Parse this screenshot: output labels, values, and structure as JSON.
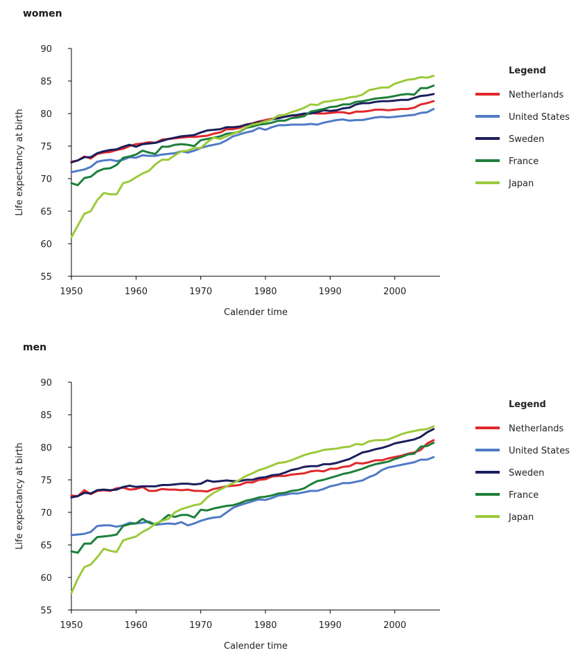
{
  "colors": {
    "Netherlands": "#e0282b",
    "United States": "#4f7ac7",
    "Sweden": "#1b1e5c",
    "France": "#1d7f3a",
    "Japan": "#9cc93b"
  },
  "chart_data": [
    {
      "type": "line",
      "title": "women",
      "xlabel": "Calender time",
      "ylabel": "Life expectancy at birth",
      "xlim": [
        1950,
        2007
      ],
      "ylim": [
        55,
        90
      ],
      "x_ticks": [
        "1950",
        "1960",
        "1970",
        "1980",
        "1990",
        "2000"
      ],
      "y_ticks": [
        "55",
        "60",
        "65",
        "70",
        "75",
        "80",
        "85",
        "90"
      ],
      "legend_title": "Legend",
      "x": [
        1950,
        1951,
        1952,
        1953,
        1954,
        1955,
        1956,
        1957,
        1958,
        1959,
        1960,
        1961,
        1962,
        1963,
        1964,
        1965,
        1966,
        1967,
        1968,
        1969,
        1970,
        1971,
        1972,
        1973,
        1974,
        1975,
        1976,
        1977,
        1978,
        1979,
        1980,
        1981,
        1982,
        1983,
        1984,
        1985,
        1986,
        1987,
        1988,
        1989,
        1990,
        1991,
        1992,
        1993,
        1994,
        1995,
        1996,
        1997,
        1998,
        1999,
        2000,
        2001,
        2002,
        2003,
        2004,
        2005,
        2006
      ],
      "series": [
        {
          "name": "Netherlands",
          "values": [
            72.6,
            72.8,
            73.4,
            73.1,
            73.8,
            74.0,
            74.1,
            74.4,
            74.6,
            75.0,
            75.3,
            75.4,
            75.6,
            75.5,
            76.0,
            76.1,
            76.2,
            76.3,
            76.4,
            76.4,
            76.5,
            76.6,
            76.9,
            77.1,
            77.6,
            77.6,
            77.8,
            78.3,
            78.5,
            78.8,
            79.0,
            79.2,
            79.3,
            79.5,
            79.7,
            79.6,
            79.8,
            80.1,
            80.0,
            80.0,
            80.1,
            80.2,
            80.2,
            80.0,
            80.3,
            80.3,
            80.4,
            80.6,
            80.6,
            80.5,
            80.6,
            80.7,
            80.7,
            80.9,
            81.4,
            81.6,
            81.9
          ]
        },
        {
          "name": "United States",
          "values": [
            71.0,
            71.2,
            71.4,
            71.8,
            72.6,
            72.8,
            72.9,
            72.7,
            72.9,
            73.3,
            73.2,
            73.6,
            73.5,
            73.5,
            73.7,
            73.8,
            73.9,
            74.2,
            74.0,
            74.3,
            74.7,
            75.0,
            75.2,
            75.4,
            75.9,
            76.5,
            76.8,
            77.1,
            77.3,
            77.8,
            77.5,
            77.9,
            78.2,
            78.2,
            78.3,
            78.3,
            78.3,
            78.4,
            78.3,
            78.6,
            78.8,
            79.0,
            79.1,
            78.9,
            79.0,
            79.0,
            79.2,
            79.4,
            79.5,
            79.4,
            79.5,
            79.6,
            79.7,
            79.8,
            80.1,
            80.2,
            80.7
          ]
        },
        {
          "name": "Sweden",
          "values": [
            72.5,
            72.8,
            73.3,
            73.3,
            73.9,
            74.2,
            74.4,
            74.5,
            74.9,
            75.2,
            74.9,
            75.3,
            75.4,
            75.5,
            75.8,
            76.1,
            76.3,
            76.5,
            76.6,
            76.7,
            77.1,
            77.4,
            77.5,
            77.6,
            77.9,
            77.9,
            78.0,
            78.3,
            78.4,
            78.7,
            78.8,
            79.1,
            79.3,
            79.5,
            79.7,
            79.8,
            80.0,
            80.0,
            80.2,
            80.5,
            80.4,
            80.5,
            80.8,
            80.9,
            81.4,
            81.6,
            81.6,
            81.8,
            81.9,
            81.9,
            82.0,
            82.1,
            82.1,
            82.4,
            82.7,
            82.8,
            83.0
          ]
        },
        {
          "name": "France",
          "values": [
            69.3,
            69.0,
            70.1,
            70.3,
            71.1,
            71.5,
            71.6,
            72.1,
            73.2,
            73.4,
            73.7,
            74.3,
            74.0,
            73.8,
            74.9,
            74.9,
            75.2,
            75.3,
            75.2,
            75.0,
            75.9,
            76.1,
            76.3,
            76.5,
            76.9,
            77.0,
            77.2,
            77.8,
            78.0,
            78.3,
            78.4,
            78.6,
            78.9,
            78.9,
            79.3,
            79.4,
            79.6,
            80.3,
            80.5,
            80.7,
            81.0,
            81.1,
            81.4,
            81.4,
            81.8,
            81.9,
            82.1,
            82.3,
            82.4,
            82.5,
            82.7,
            82.9,
            83.0,
            82.9,
            83.9,
            83.9,
            84.3
          ]
        },
        {
          "name": "Japan",
          "values": [
            61.0,
            62.8,
            64.6,
            65.0,
            66.7,
            67.8,
            67.6,
            67.6,
            69.3,
            69.6,
            70.2,
            70.8,
            71.2,
            72.2,
            72.9,
            72.9,
            73.6,
            74.2,
            74.3,
            74.7,
            74.7,
            75.6,
            76.3,
            76.1,
            76.5,
            76.9,
            77.3,
            77.9,
            78.3,
            78.5,
            78.8,
            79.1,
            79.7,
            79.8,
            80.2,
            80.5,
            80.9,
            81.4,
            81.3,
            81.8,
            81.9,
            82.1,
            82.2,
            82.5,
            82.6,
            82.9,
            83.6,
            83.8,
            84.0,
            84.0,
            84.6,
            84.9,
            85.2,
            85.3,
            85.6,
            85.5,
            85.8
          ]
        }
      ]
    },
    {
      "type": "line",
      "title": "men",
      "xlabel": "Calender time",
      "ylabel": "Life expectancy at birth",
      "xlim": [
        1950,
        2007
      ],
      "ylim": [
        55,
        90
      ],
      "x_ticks": [
        "1950",
        "1960",
        "1970",
        "1980",
        "1990",
        "2000"
      ],
      "y_ticks": [
        "55",
        "60",
        "65",
        "70",
        "75",
        "80",
        "85",
        "90"
      ],
      "legend_title": "Legend",
      "x": [
        1950,
        1951,
        1952,
        1953,
        1954,
        1955,
        1956,
        1957,
        1958,
        1959,
        1960,
        1961,
        1962,
        1963,
        1964,
        1965,
        1966,
        1967,
        1968,
        1969,
        1970,
        1971,
        1972,
        1973,
        1974,
        1975,
        1976,
        1977,
        1978,
        1979,
        1980,
        1981,
        1982,
        1983,
        1984,
        1985,
        1986,
        1987,
        1988,
        1989,
        1990,
        1991,
        1992,
        1993,
        1994,
        1995,
        1996,
        1997,
        1998,
        1999,
        2000,
        2001,
        2002,
        2003,
        2004,
        2005,
        2006
      ],
      "series": [
        {
          "name": "Netherlands",
          "values": [
            72.6,
            72.5,
            73.4,
            72.8,
            73.3,
            73.4,
            73.3,
            73.7,
            73.8,
            73.5,
            73.6,
            73.9,
            73.3,
            73.3,
            73.6,
            73.5,
            73.5,
            73.4,
            73.5,
            73.3,
            73.3,
            73.2,
            73.6,
            73.8,
            74.0,
            74.1,
            74.2,
            74.6,
            74.6,
            75.0,
            75.1,
            75.5,
            75.6,
            75.6,
            75.8,
            75.9,
            76.0,
            76.3,
            76.4,
            76.3,
            76.7,
            76.7,
            77.0,
            77.1,
            77.6,
            77.5,
            77.7,
            78.0,
            78.0,
            78.3,
            78.5,
            78.7,
            79.0,
            79.2,
            79.6,
            80.6,
            81.1
          ]
        },
        {
          "name": "United States",
          "values": [
            66.5,
            66.6,
            66.7,
            67.0,
            67.9,
            68.0,
            68.0,
            67.8,
            68.0,
            68.4,
            68.3,
            68.4,
            68.6,
            68.1,
            68.2,
            68.3,
            68.2,
            68.5,
            68.0,
            68.3,
            68.7,
            69.0,
            69.2,
            69.3,
            70.0,
            70.7,
            71.1,
            71.4,
            71.7,
            72.0,
            71.9,
            72.2,
            72.6,
            72.7,
            72.9,
            72.9,
            73.1,
            73.3,
            73.3,
            73.6,
            74.0,
            74.2,
            74.5,
            74.5,
            74.7,
            74.9,
            75.4,
            75.8,
            76.5,
            76.9,
            77.1,
            77.3,
            77.5,
            77.7,
            78.1,
            78.1,
            78.5
          ]
        },
        {
          "name": "Sweden",
          "values": [
            72.3,
            72.5,
            73.0,
            72.9,
            73.4,
            73.5,
            73.4,
            73.5,
            73.9,
            74.1,
            73.9,
            74.0,
            74.0,
            74.0,
            74.2,
            74.2,
            74.3,
            74.4,
            74.4,
            74.3,
            74.4,
            74.9,
            74.7,
            74.8,
            74.9,
            74.8,
            74.8,
            75.0,
            75.0,
            75.3,
            75.4,
            75.7,
            75.8,
            76.1,
            76.5,
            76.7,
            77.0,
            77.1,
            77.1,
            77.4,
            77.4,
            77.6,
            77.9,
            78.2,
            78.7,
            79.2,
            79.4,
            79.7,
            79.9,
            80.2,
            80.6,
            80.8,
            81.0,
            81.2,
            81.6,
            82.3,
            82.8
          ]
        },
        {
          "name": "France",
          "values": [
            64.0,
            63.8,
            65.2,
            65.2,
            66.2,
            66.3,
            66.4,
            66.6,
            67.9,
            68.2,
            68.3,
            69.0,
            68.4,
            68.1,
            68.8,
            69.6,
            69.3,
            69.6,
            69.6,
            69.2,
            70.4,
            70.3,
            70.6,
            70.8,
            71.0,
            71.1,
            71.4,
            71.8,
            72.0,
            72.3,
            72.4,
            72.6,
            72.9,
            73.0,
            73.3,
            73.4,
            73.7,
            74.3,
            74.8,
            75.0,
            75.3,
            75.6,
            75.9,
            76.1,
            76.4,
            76.7,
            77.1,
            77.4,
            77.6,
            77.8,
            78.2,
            78.5,
            78.9,
            79.0,
            80.1,
            80.2,
            80.7
          ]
        },
        {
          "name": "Japan",
          "values": [
            57.6,
            59.8,
            61.6,
            62.0,
            63.1,
            64.4,
            64.1,
            63.9,
            65.7,
            66.0,
            66.3,
            67.0,
            67.5,
            68.3,
            68.7,
            69.0,
            70.0,
            70.5,
            70.8,
            71.1,
            71.3,
            72.3,
            73.0,
            73.5,
            74.0,
            74.5,
            75.0,
            75.6,
            76.0,
            76.5,
            76.8,
            77.2,
            77.6,
            77.7,
            78.0,
            78.4,
            78.8,
            79.1,
            79.3,
            79.6,
            79.7,
            79.8,
            80.0,
            80.1,
            80.5,
            80.4,
            80.9,
            81.1,
            81.1,
            81.2,
            81.6,
            82.0,
            82.3,
            82.5,
            82.7,
            82.8,
            83.2
          ]
        }
      ]
    }
  ]
}
